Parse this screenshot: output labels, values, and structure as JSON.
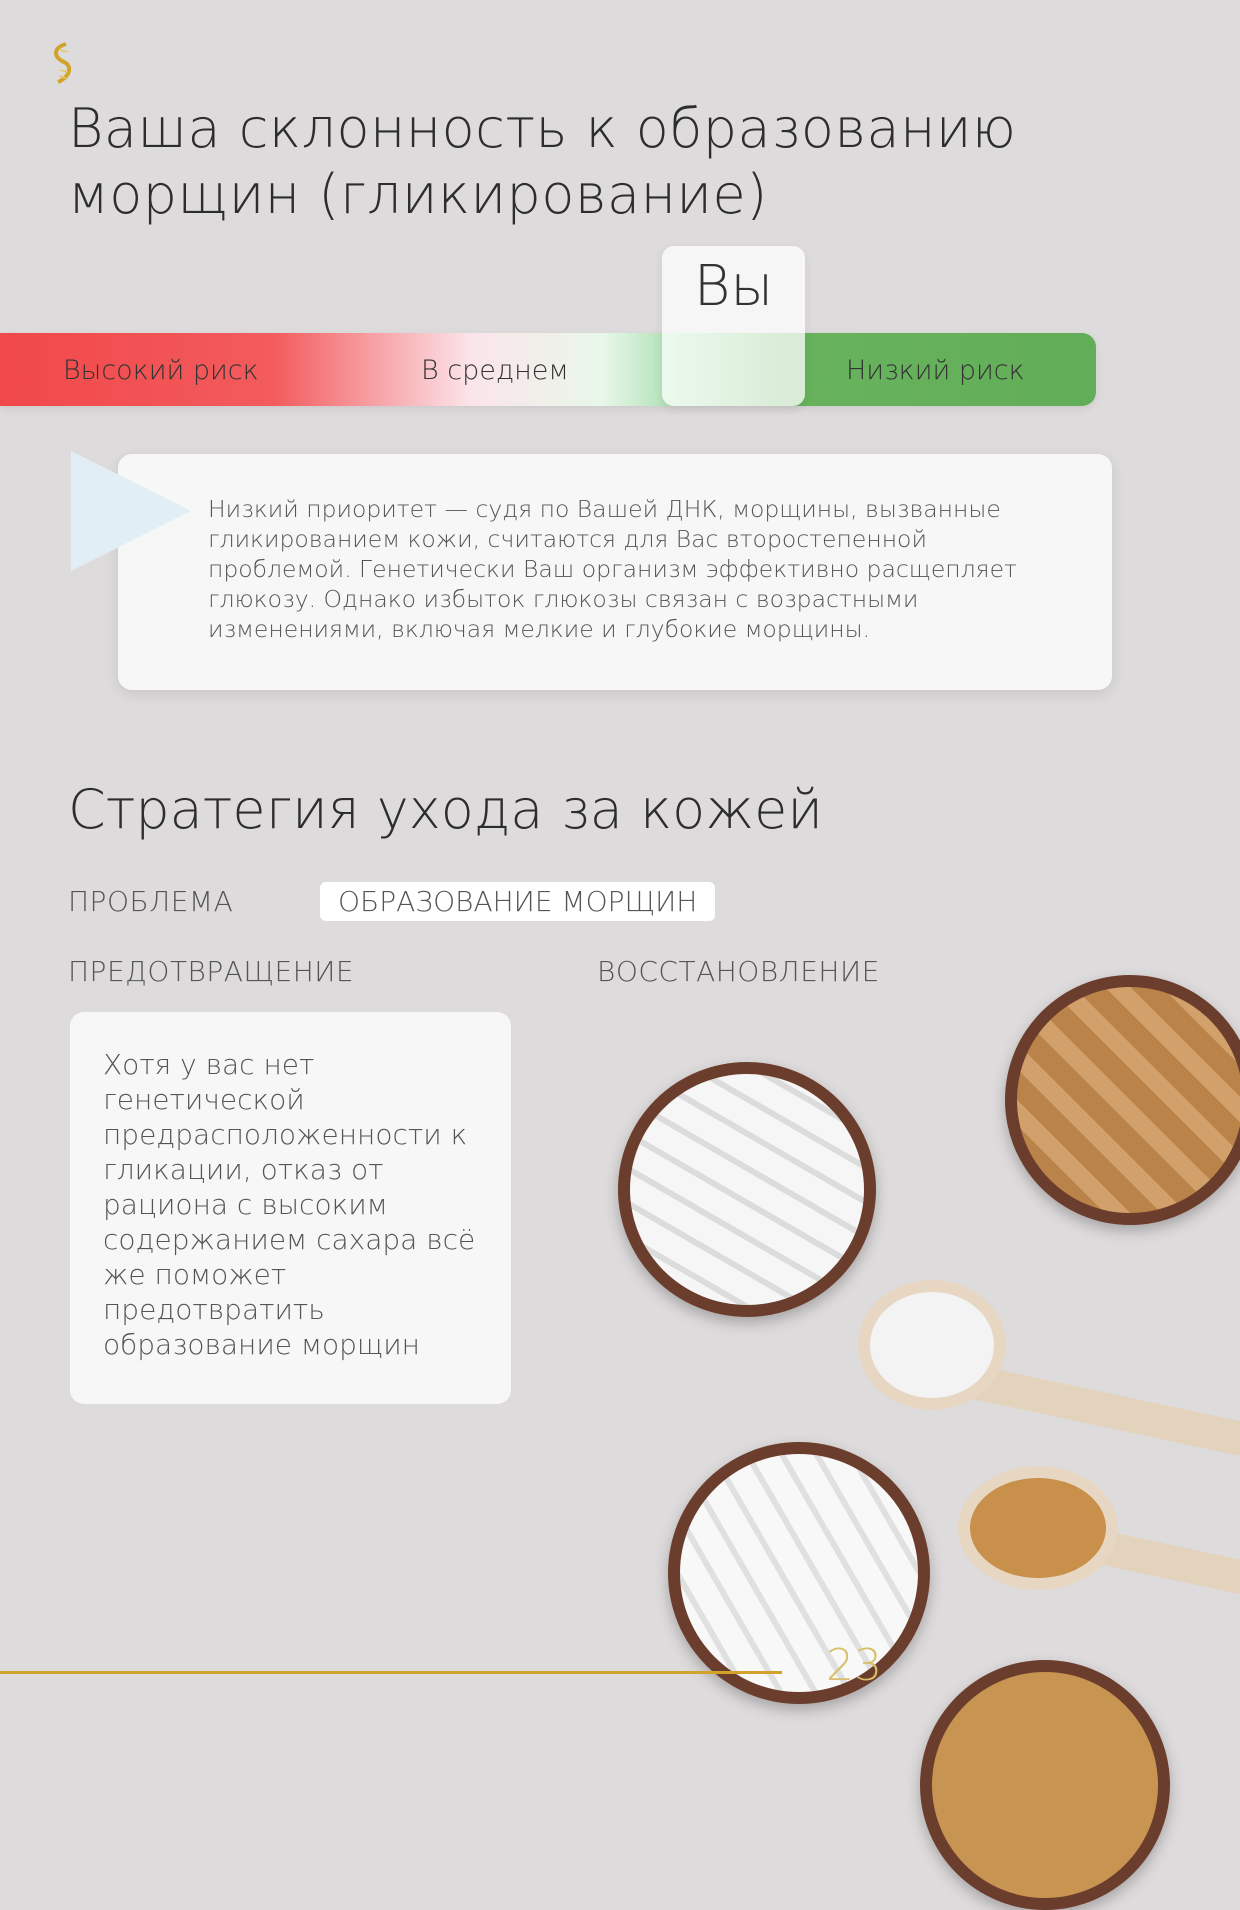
{
  "logo": {
    "icon": "dna-helix-icon",
    "color": "#d2a32a"
  },
  "title": "Ваша склонность к образованию морщин (гликирование)",
  "risk_scale": {
    "labels": [
      "Высокий риск",
      "В среднем",
      "Низкий риск"
    ],
    "marker_label": "Вы",
    "position": "Низкий риск",
    "colors": {
      "high": "#f1484a",
      "low": "#62ad57"
    }
  },
  "note": {
    "text": "Низкий приоритет — судя по Вашей ДНК, морщины, вызванные гликированием кожи, считаются для Вас второстепенной проблемой. Генетически Ваш организм эффективно расщепляет глюкозу. Однако избыток глюкозы связан с возрастными изменениями, включая мелкие и глубокие морщины."
  },
  "strategy": {
    "heading": "Стратегия ухода за кожей",
    "problem_label": "ПРОБЛЕМА",
    "problem_value": "ОБРАЗОВАНИЕ МОРЩИН",
    "prevention_label": "ПРЕДОТВРАЩЕНИЕ",
    "recovery_label": "ВОССТАНОВЛЕНИЕ",
    "prevention_text": "Хотя у вас нет генетической предрасположенности к гликации, отказ от рациона с высоким содержанием сахара всё же поможет предотвратить образование морщин"
  },
  "footer": {
    "page_number": "23",
    "accent": "#d2a32a"
  }
}
